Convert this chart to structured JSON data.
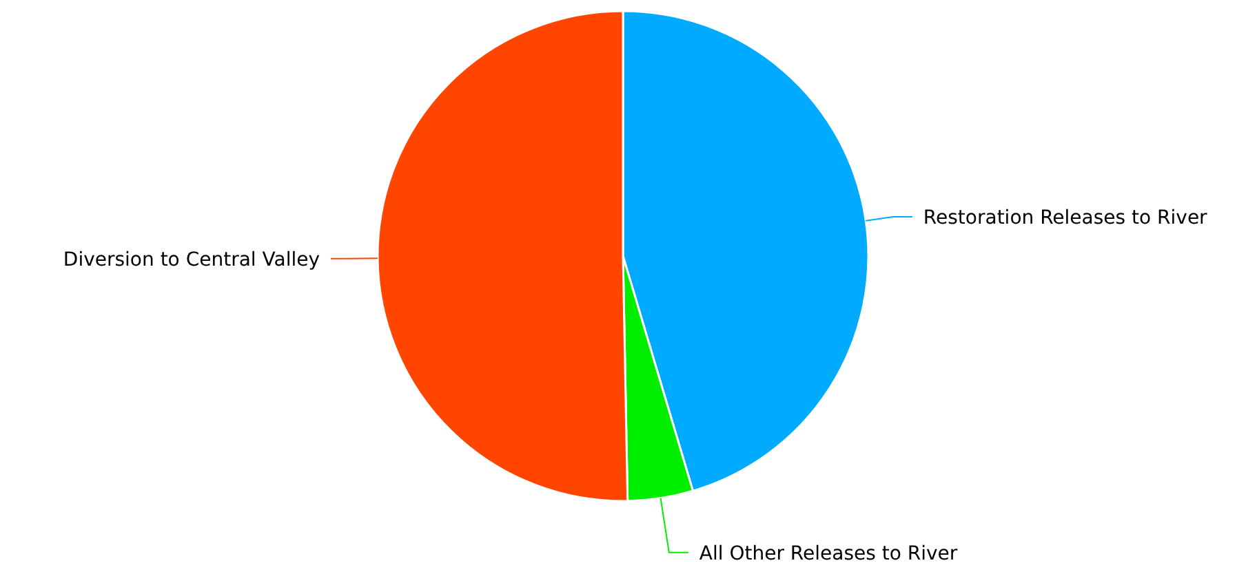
{
  "chart_data": {
    "type": "pie",
    "categories": [
      "Restoration Releases to River",
      "All Other Releases to River",
      "Diversion to Central Valley"
    ],
    "values": [
      45.4,
      4.3,
      50.3
    ],
    "colors": [
      "#00aaff",
      "#00ee00",
      "#ff4500"
    ]
  }
}
